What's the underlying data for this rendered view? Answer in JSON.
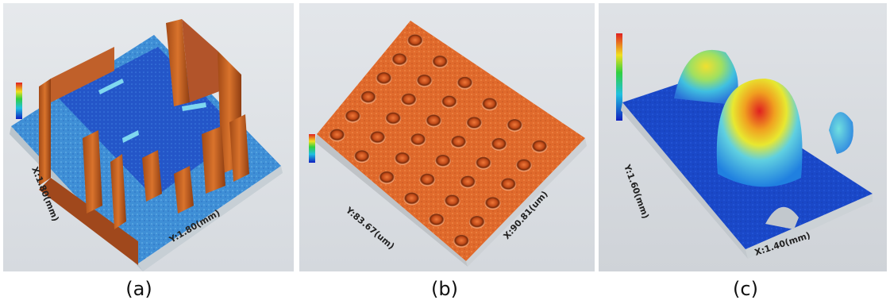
{
  "panels": [
    {
      "id": "a",
      "caption": "(a)",
      "axis_left": "X:1.80(mm)",
      "axis_right": "Y:1.80(mm)"
    },
    {
      "id": "b",
      "caption": "(b)",
      "axis_left": "Y:83.67(um)",
      "axis_right": "X:90.81(um)"
    },
    {
      "id": "c",
      "caption": "(c)",
      "axis_left": "Y:1.60(mm)",
      "axis_right": "X:1.40(mm)"
    }
  ]
}
